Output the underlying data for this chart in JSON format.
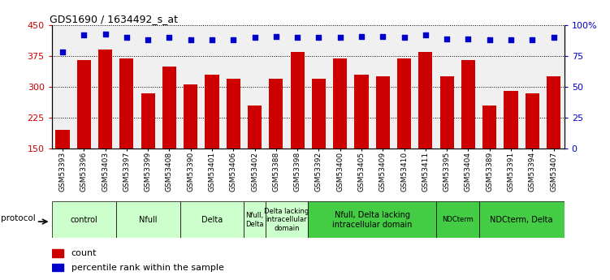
{
  "title": "GDS1690 / 1634492_s_at",
  "samples": [
    "GSM53393",
    "GSM53396",
    "GSM53403",
    "GSM53397",
    "GSM53399",
    "GSM53408",
    "GSM53390",
    "GSM53401",
    "GSM53406",
    "GSM53402",
    "GSM53388",
    "GSM53398",
    "GSM53392",
    "GSM53400",
    "GSM53405",
    "GSM53409",
    "GSM53410",
    "GSM53411",
    "GSM53395",
    "GSM53404",
    "GSM53389",
    "GSM53391",
    "GSM53394",
    "GSM53407"
  ],
  "counts": [
    195,
    365,
    390,
    370,
    285,
    350,
    305,
    330,
    320,
    255,
    320,
    385,
    320,
    370,
    330,
    325,
    370,
    385,
    325,
    365,
    255,
    290,
    285,
    325
  ],
  "percentiles": [
    78,
    92,
    93,
    90,
    88,
    90,
    88,
    88,
    88,
    90,
    91,
    90,
    90,
    90,
    91,
    91,
    90,
    92,
    89,
    89,
    88,
    88,
    88,
    90
  ],
  "ylim_left": [
    150,
    450
  ],
  "ylim_right": [
    0,
    100
  ],
  "yticks_left": [
    150,
    225,
    300,
    375,
    450
  ],
  "yticks_right": [
    0,
    25,
    50,
    75,
    100
  ],
  "bar_color": "#cc0000",
  "dot_color": "#0000cc",
  "bg_color": "#e8e8e8",
  "protocol_groups": [
    {
      "label": "control",
      "start": 0,
      "end": 2,
      "color": "#ccffcc"
    },
    {
      "label": "Nfull",
      "start": 3,
      "end": 5,
      "color": "#ccffcc"
    },
    {
      "label": "Delta",
      "start": 6,
      "end": 8,
      "color": "#ccffcc"
    },
    {
      "label": "Nfull,\nDelta",
      "start": 9,
      "end": 9,
      "color": "#ccffcc"
    },
    {
      "label": "Delta lacking\nintracellular\ndomain",
      "start": 10,
      "end": 11,
      "color": "#ccffcc"
    },
    {
      "label": "Nfull, Delta lacking\nintracellular domain",
      "start": 12,
      "end": 17,
      "color": "#44cc44"
    },
    {
      "label": "NDCterm",
      "start": 18,
      "end": 19,
      "color": "#44cc44"
    },
    {
      "label": "NDCterm, Delta",
      "start": 20,
      "end": 23,
      "color": "#44cc44"
    }
  ]
}
